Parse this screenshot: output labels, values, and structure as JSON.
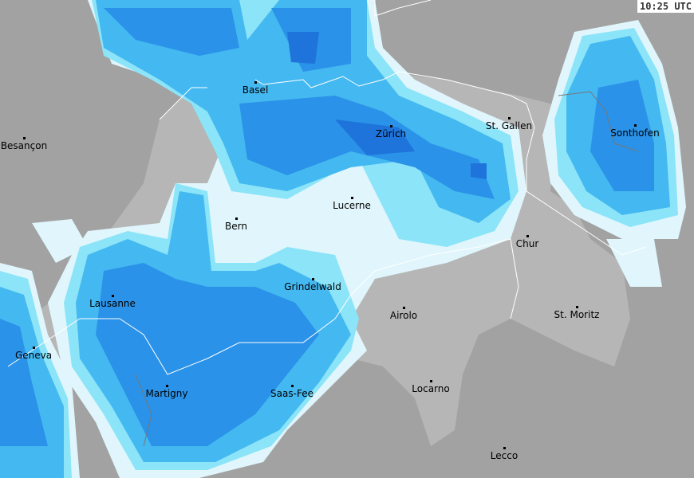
{
  "timestamp": "10:25 UTC",
  "colors": {
    "outside": "#a2a2a2",
    "switzerland": "#b6b6b6",
    "precip_1": "#e0f6fc",
    "precip_2": "#8ce4f8",
    "precip_3": "#44b8f0",
    "precip_4": "#2a92e8",
    "precip_5": "#1e74da",
    "border": "#ffffff"
  },
  "cities": [
    {
      "name": "Basel"
    },
    {
      "name": "Zürich"
    },
    {
      "name": "St. Gallen"
    },
    {
      "name": "Sonthofen"
    },
    {
      "name": "Besançon"
    },
    {
      "name": "Lucerne"
    },
    {
      "name": "Bern"
    },
    {
      "name": "Chur"
    },
    {
      "name": "Grindelwald"
    },
    {
      "name": "Lausanne"
    },
    {
      "name": "Airolo"
    },
    {
      "name": "St. Moritz"
    },
    {
      "name": "Geneva"
    },
    {
      "name": "Martigny"
    },
    {
      "name": "Saas-Fee"
    },
    {
      "name": "Locarno"
    },
    {
      "name": "Lecco"
    }
  ]
}
